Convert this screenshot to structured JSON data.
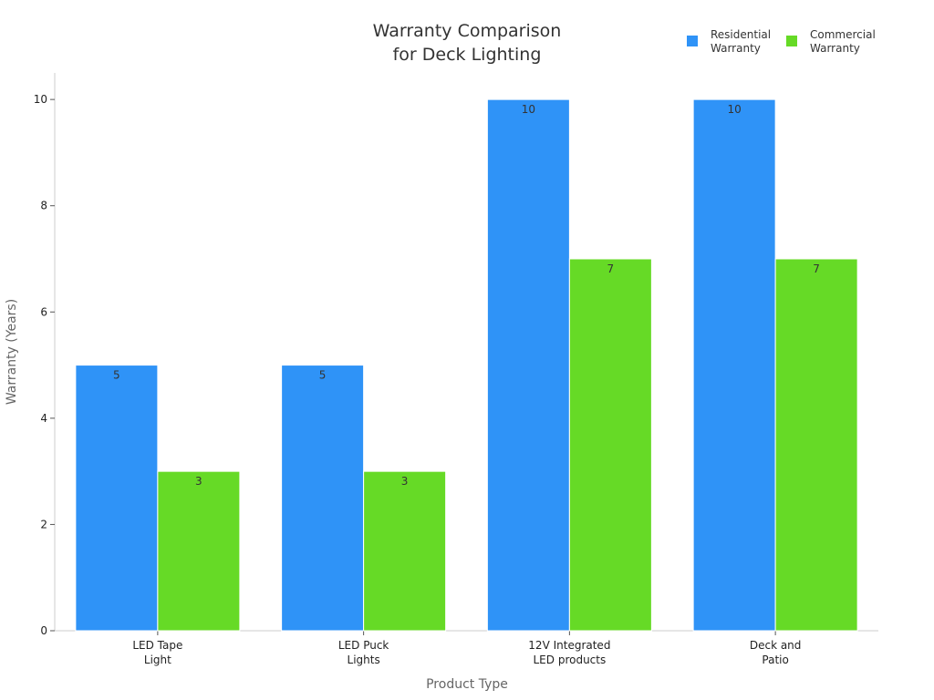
{
  "chart_data": {
    "type": "bar",
    "title": [
      "Warranty Comparison",
      "for Deck Lighting"
    ],
    "xlabel": "Product Type",
    "ylabel": "Warranty (Years)",
    "categories": [
      [
        "LED Tape",
        "Light"
      ],
      [
        "LED Puck",
        "Lights"
      ],
      [
        "12V Integrated",
        "LED products"
      ],
      [
        "Deck and",
        "Patio"
      ]
    ],
    "series": [
      {
        "name": [
          "Residential",
          "Warranty"
        ],
        "values": [
          5,
          5,
          10,
          10
        ],
        "color": "#2f93f7"
      },
      {
        "name": [
          "Commercial",
          "Warranty"
        ],
        "values": [
          3,
          3,
          7,
          7
        ],
        "color": "#66da26"
      }
    ],
    "ylim": [
      0,
      10.5
    ],
    "yticks": [
      0,
      2,
      4,
      6,
      8,
      10
    ],
    "grid": false,
    "legend_position": "top-right"
  }
}
